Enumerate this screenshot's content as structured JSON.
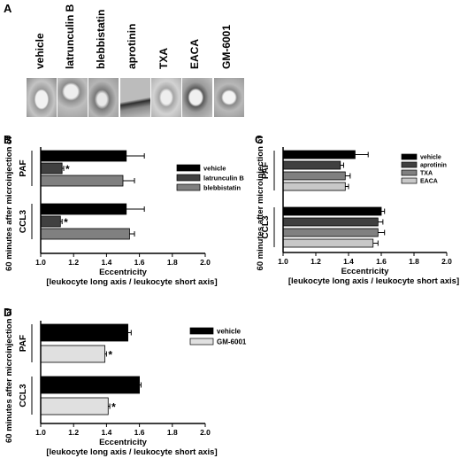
{
  "panels": {
    "A": "A",
    "B": "B",
    "C": "C",
    "D": "D"
  },
  "image_strip": {
    "labels": [
      "vehicle",
      "latrunculin B",
      "blebbistatin",
      "aprotinin",
      "TXA",
      "EACA",
      "GM-6001"
    ]
  },
  "colors": {
    "black": "#000000",
    "dark": "#404040",
    "mid": "#808080",
    "light": "#c8c8c8"
  },
  "chart_data": [
    {
      "panel": "B",
      "type": "bar",
      "orientation": "horizontal",
      "groups": [
        "PAF",
        "CCL3"
      ],
      "series": [
        {
          "name": "vehicle",
          "color": "#000000",
          "values": [
            1.52,
            1.52
          ],
          "errors": [
            0.11,
            0.11
          ]
        },
        {
          "name": "latrunculin B",
          "color": "#404040",
          "values": [
            1.13,
            1.12
          ],
          "errors": [
            0.01,
            0.01
          ]
        },
        {
          "name": "blebbistatin",
          "color": "#808080",
          "values": [
            1.5,
            1.54
          ],
          "errors": [
            0.07,
            0.03
          ]
        }
      ],
      "significance": [
        [
          "",
          "*",
          ""
        ],
        [
          "",
          "*",
          ""
        ]
      ],
      "xlim": [
        1.0,
        2.0
      ],
      "xticks": [
        "1.0",
        "1.2",
        "1.4",
        "1.6",
        "1.8",
        "2.0"
      ],
      "ylabel_group": "60 minutes after microinjection of",
      "xlabel": "Eccentricity",
      "xlabel2": "[leukocyte long axis / leukocyte short axis]"
    },
    {
      "panel": "C",
      "type": "bar",
      "orientation": "horizontal",
      "groups": [
        "PAF",
        "CCL3"
      ],
      "series": [
        {
          "name": "vehicle",
          "color": "#000000",
          "values": [
            1.44,
            1.6
          ],
          "errors": [
            0.08,
            0.02
          ]
        },
        {
          "name": "aprotinin",
          "color": "#404040",
          "values": [
            1.35,
            1.58
          ],
          "errors": [
            0.02,
            0.03
          ]
        },
        {
          "name": "TXA",
          "color": "#808080",
          "values": [
            1.38,
            1.58
          ],
          "errors": [
            0.03,
            0.04
          ]
        },
        {
          "name": "EACA",
          "color": "#c8c8c8",
          "values": [
            1.38,
            1.55
          ],
          "errors": [
            0.02,
            0.03
          ]
        }
      ],
      "significance": [
        [
          "",
          "",
          "",
          ""
        ],
        [
          "",
          "",
          "",
          ""
        ]
      ],
      "xlim": [
        1.0,
        2.0
      ],
      "xticks": [
        "1.0",
        "1.2",
        "1.4",
        "1.6",
        "1.8",
        "2.0"
      ],
      "ylabel_group": "60 minutes after microinjection of",
      "xlabel": "Eccentricity",
      "xlabel2": "[leukocyte long axis / leukocyte short axis]"
    },
    {
      "panel": "D",
      "type": "bar",
      "orientation": "horizontal",
      "groups": [
        "PAF",
        "CCL3"
      ],
      "series": [
        {
          "name": "vehicle",
          "color": "#000000",
          "values": [
            1.53,
            1.6
          ],
          "errors": [
            0.02,
            0.01
          ]
        },
        {
          "name": "GM-6001",
          "color": "#e0e0e0",
          "values": [
            1.39,
            1.41
          ],
          "errors": [
            0.01,
            0.01
          ]
        }
      ],
      "significance": [
        [
          "",
          "*"
        ],
        [
          "",
          "*"
        ]
      ],
      "xlim": [
        1.0,
        2.0
      ],
      "xticks": [
        "1.0",
        "1.2",
        "1.4",
        "1.6",
        "1.8",
        "2.0"
      ],
      "ylabel_group": "60 minutes after microinjection of",
      "xlabel": "Eccentricity",
      "xlabel2": "[leukocyte long axis / leukocyte short axis]"
    }
  ]
}
